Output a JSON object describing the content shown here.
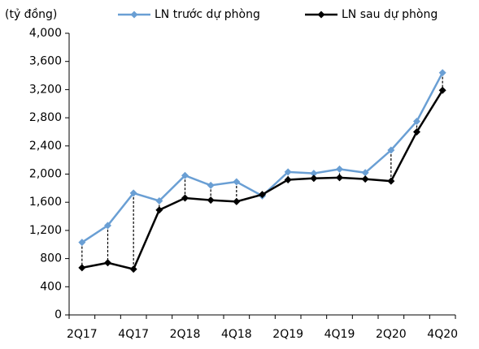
{
  "chart_data": {
    "type": "line",
    "y_label": "(tỷ đồng)",
    "categories": [
      "2Q17",
      null,
      "4Q17",
      null,
      "2Q18",
      null,
      "4Q18",
      null,
      "2Q19",
      null,
      "4Q19",
      null,
      "2Q20",
      null,
      "4Q20"
    ],
    "series": [
      {
        "name": "LN trước dự phòng",
        "color": "#6a9fd4",
        "marker": "diamond",
        "values": [
          1030,
          1270,
          1730,
          1620,
          1980,
          1840,
          1890,
          1690,
          2030,
          2010,
          2070,
          2020,
          2340,
          2750,
          3440
        ]
      },
      {
        "name": "LN sau dự phòng",
        "color": "#000000",
        "marker": "diamond",
        "values": [
          670,
          740,
          650,
          1490,
          1660,
          1630,
          1610,
          1710,
          1920,
          1940,
          1950,
          1930,
          1900,
          2600,
          3190
        ]
      }
    ],
    "ylim": [
      0,
      4000
    ],
    "yticks": [
      0,
      400,
      800,
      {
        "value": 1200,
        "label": "1,200"
      },
      {
        "value": 1600,
        "label": "1,600"
      },
      {
        "value": 2000,
        "label": "2,000"
      },
      {
        "value": 2400,
        "label": "2,400"
      },
      {
        "value": 2800,
        "label": "2,800"
      },
      {
        "value": 3200,
        "label": "3,200"
      },
      {
        "value": 3600,
        "label": "3,600"
      },
      {
        "value": 4000,
        "label": "4,000"
      }
    ],
    "grid": false,
    "legend": "top"
  }
}
